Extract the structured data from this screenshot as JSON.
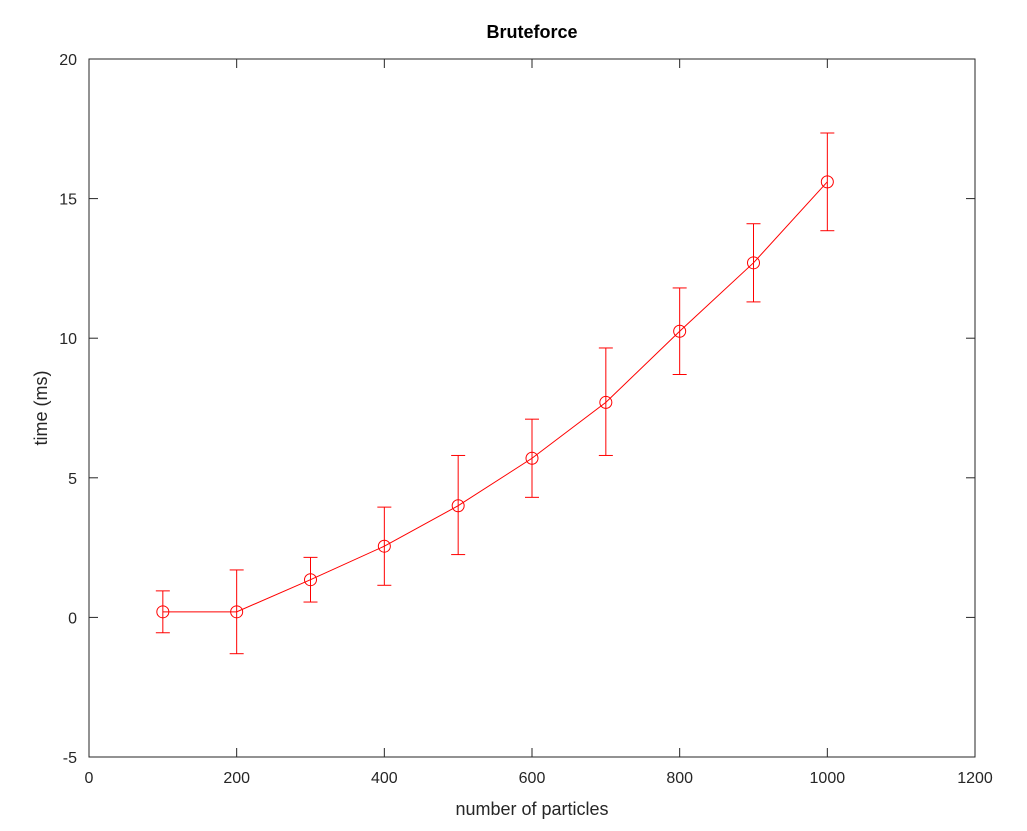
{
  "chart_data": {
    "type": "line",
    "title": "Bruteforce",
    "xlabel": "number of particles",
    "ylabel": "time (ms)",
    "xlim": [
      0,
      1200
    ],
    "ylim": [
      -5,
      20
    ],
    "xticks": [
      0,
      200,
      400,
      600,
      800,
      1000,
      1200
    ],
    "yticks": [
      -5,
      0,
      5,
      10,
      15,
      20
    ],
    "xtick_labels": [
      "0",
      "200",
      "400",
      "600",
      "800",
      "1000",
      "1200"
    ],
    "ytick_labels": [
      "-5",
      "0",
      "5",
      "10",
      "15",
      "20"
    ],
    "grid": false,
    "legend": "none",
    "marker": "circle",
    "error_bars": true,
    "series": [
      {
        "color": "#ff0000",
        "x": [
          100,
          200,
          300,
          400,
          500,
          600,
          700,
          800,
          900,
          1000
        ],
        "y": [
          0.2,
          0.2,
          1.35,
          2.55,
          4.0,
          5.7,
          7.7,
          10.25,
          12.7,
          15.6
        ],
        "y_lower": [
          -0.55,
          -1.3,
          0.55,
          1.15,
          2.25,
          4.3,
          5.8,
          8.7,
          11.3,
          13.85
        ],
        "y_upper": [
          0.95,
          1.7,
          2.15,
          3.95,
          5.8,
          7.1,
          9.65,
          11.8,
          14.1,
          17.35
        ]
      }
    ]
  }
}
